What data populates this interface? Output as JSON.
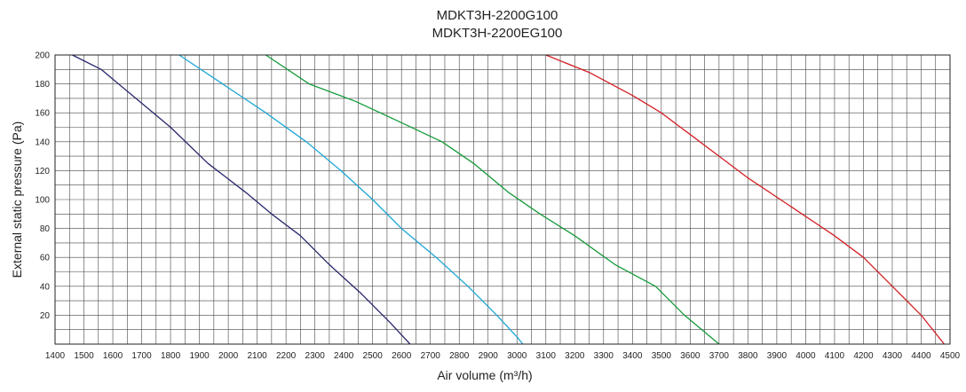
{
  "chart_data": {
    "type": "line",
    "title": [
      "MDKT3H-2200G100",
      "MDKT3H-2200EG100"
    ],
    "xlabel": "Air volume (m³/h)",
    "ylabel": "External static pressure (Pa)",
    "xlim": [
      1400,
      4500
    ],
    "ylim": [
      0,
      200
    ],
    "x_ticks": [
      1400,
      1500,
      1600,
      1700,
      1800,
      1900,
      2000,
      2100,
      2200,
      2300,
      2400,
      2500,
      2600,
      2700,
      2800,
      2900,
      3000,
      3100,
      3200,
      3300,
      3400,
      3500,
      3600,
      3700,
      3800,
      3900,
      4000,
      4100,
      4200,
      4300,
      4400,
      4500
    ],
    "y_ticks": [
      20,
      40,
      60,
      80,
      100,
      120,
      140,
      160,
      180,
      200
    ],
    "x_minor_step": 50,
    "y_minor_step": 10,
    "grid": true,
    "series": [
      {
        "color": "#27276b",
        "points": [
          [
            1460,
            200
          ],
          [
            1560,
            190
          ],
          [
            1680,
            170
          ],
          [
            1800,
            150
          ],
          [
            1930,
            125
          ],
          [
            2060,
            105
          ],
          [
            2150,
            90
          ],
          [
            2250,
            75
          ],
          [
            2350,
            55
          ],
          [
            2460,
            35
          ],
          [
            2560,
            15
          ],
          [
            2630,
            0
          ]
        ]
      },
      {
        "color": "#1ba6d6",
        "points": [
          [
            1830,
            200
          ],
          [
            1980,
            180
          ],
          [
            2130,
            160
          ],
          [
            2270,
            140
          ],
          [
            2390,
            120
          ],
          [
            2500,
            100
          ],
          [
            2600,
            80
          ],
          [
            2720,
            60
          ],
          [
            2830,
            40
          ],
          [
            2930,
            20
          ],
          [
            3000,
            5
          ],
          [
            3020,
            0
          ]
        ]
      },
      {
        "color": "#149a3a",
        "points": [
          [
            2130,
            200
          ],
          [
            2280,
            180
          ],
          [
            2440,
            168
          ],
          [
            2580,
            155
          ],
          [
            2740,
            140
          ],
          [
            2850,
            125
          ],
          [
            2970,
            105
          ],
          [
            3080,
            90
          ],
          [
            3200,
            75
          ],
          [
            3340,
            55
          ],
          [
            3480,
            40
          ],
          [
            3580,
            20
          ],
          [
            3700,
            0
          ]
        ]
      },
      {
        "color": "#d41f26",
        "points": [
          [
            3100,
            200
          ],
          [
            3250,
            188
          ],
          [
            3400,
            172
          ],
          [
            3500,
            160
          ],
          [
            3600,
            145
          ],
          [
            3700,
            130
          ],
          [
            3800,
            115
          ],
          [
            3950,
            95
          ],
          [
            4100,
            75
          ],
          [
            4200,
            60
          ],
          [
            4300,
            40
          ],
          [
            4400,
            20
          ],
          [
            4480,
            0
          ]
        ]
      }
    ]
  }
}
